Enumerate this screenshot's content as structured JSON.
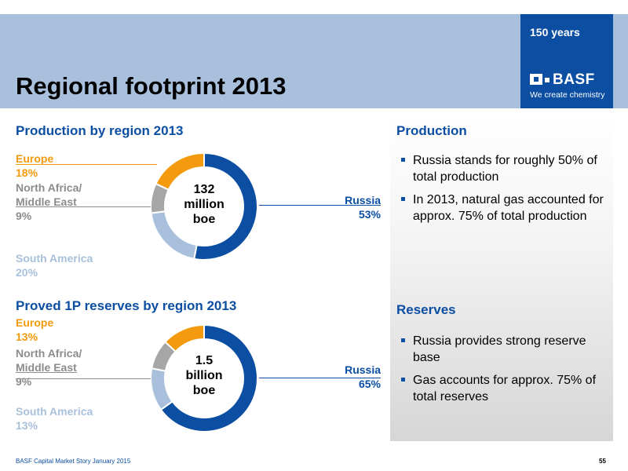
{
  "header": {
    "title": "Regional footprint 2013",
    "logo": {
      "years": "150 years",
      "brand": "BASF",
      "tagline": "We create chemistry"
    }
  },
  "production_chart": {
    "title": "Production by region 2013",
    "center_value": "132",
    "center_unit_1": "million",
    "center_unit_2": "boe"
  },
  "reserves_chart": {
    "title": "Proved 1P reserves by region 2013",
    "center_value": "1.5",
    "center_unit_1": "billion",
    "center_unit_2": "boe"
  },
  "chart_data": [
    {
      "type": "pie",
      "title": "Production by region 2013",
      "categories": [
        "Russia",
        "South America",
        "North Africa/ Middle East",
        "Europe"
      ],
      "values": [
        53,
        20,
        9,
        18
      ],
      "labels": [
        "53%",
        "20%",
        "9%",
        "18%"
      ],
      "colors": [
        "#0b4ea2",
        "#a9c0dc",
        "#a6a6a6",
        "#f39a0e"
      ]
    },
    {
      "type": "pie",
      "title": "Proved 1P reserves by region 2013",
      "categories": [
        "Russia",
        "South America",
        "North Africa/ Middle East",
        "Europe"
      ],
      "values": [
        65,
        13,
        9,
        13
      ],
      "labels": [
        "65%",
        "13%",
        "9%",
        "13%"
      ],
      "colors": [
        "#0b4ea2",
        "#a9c0dc",
        "#a6a6a6",
        "#f39a0e"
      ]
    }
  ],
  "labels": {
    "europe": "Europe",
    "north_africa_1": "North Africa/",
    "north_africa_2": "Middle East",
    "south_america": "South America",
    "russia": "Russia"
  },
  "production_panel": {
    "title": "Production",
    "bullets": [
      "Russia stands for roughly 50% of total production",
      "In 2013, natural gas accounted for approx. 75% of total production"
    ]
  },
  "reserves_panel": {
    "title": "Reserves",
    "bullets": [
      "Russia provides strong reserve base",
      "Gas accounts for approx. 75% of total reserves"
    ]
  },
  "footer": {
    "source": "BASF Capital Market Story January 2015",
    "page": "55"
  },
  "colors": {
    "basf_blue": "#0b4ea2",
    "light_blue": "#a9c0dc",
    "orange": "#f39a0e",
    "grey": "#a6a6a6"
  }
}
